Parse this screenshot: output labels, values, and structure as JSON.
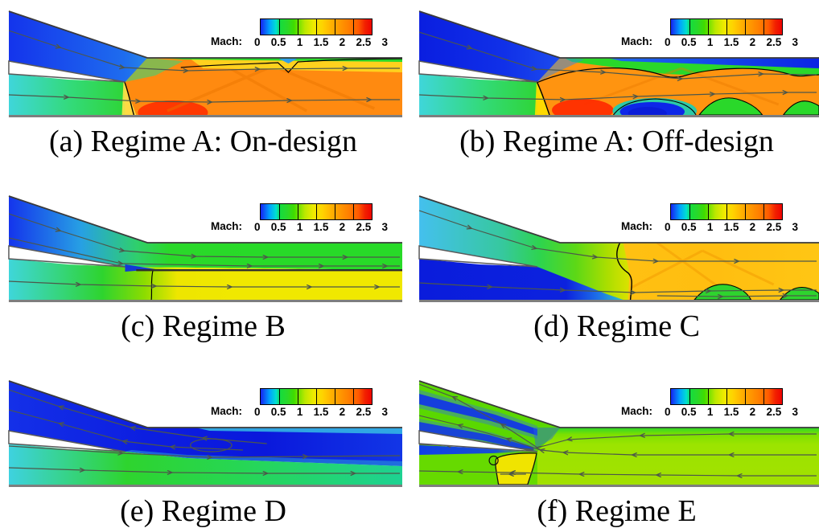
{
  "figure": {
    "kind": "CFD Mach-number contour figure",
    "rows": 3,
    "cols": 2
  },
  "colorbar": {
    "label": "Mach:",
    "ticks": [
      "0",
      "0.5",
      "1",
      "1.5",
      "2",
      "2.5",
      "3"
    ],
    "range": [
      0,
      3
    ],
    "palette": [
      "#1623f0",
      "#00c8ff",
      "#2ad82a",
      "#f0ea00",
      "#ffb000",
      "#ff7d00",
      "#ee0400"
    ]
  },
  "panels": [
    {
      "id": "a",
      "caption": "(a) Regime A: On-design"
    },
    {
      "id": "b",
      "caption": "(b) Regime A: Off-design"
    },
    {
      "id": "c",
      "caption": "(c) Regime B"
    },
    {
      "id": "d",
      "caption": "(d) Regime C"
    },
    {
      "id": "e",
      "caption": "(e) Regime D"
    },
    {
      "id": "f",
      "caption": "(f) Regime E"
    }
  ],
  "chart_data": [
    {
      "type": "heatmap",
      "panel": "a",
      "title": "(a) Regime A: On-design",
      "variable": "Mach",
      "range": [
        0,
        3
      ],
      "colorbar_ticks": [
        0,
        0.5,
        1,
        1.5,
        2,
        2.5,
        3
      ],
      "features": {
        "upper_inlet_mach": 0.4,
        "lower_inlet_mach": 0.7,
        "downstream_core_mach": 2.2,
        "downstream_top_layer_mach": 1.1,
        "shock_at_splitter_tip": true,
        "shock_diamonds": true,
        "flow_direction": "left-to-right"
      }
    },
    {
      "type": "heatmap",
      "panel": "b",
      "title": "(b) Regime A: Off-design",
      "variable": "Mach",
      "range": [
        0,
        3
      ],
      "colorbar_ticks": [
        0,
        0.5,
        1,
        1.5,
        2,
        2.5,
        3
      ],
      "features": {
        "upper_inlet_mach": 0.25,
        "lower_inlet_mach": 0.7,
        "downstream_core_mach": 2.0,
        "top_wall_subsonic_layer_mach": 0.3,
        "separation_bubble_mach": 0.15,
        "subsonic_pocket_mach": 0.8,
        "shock_train": true,
        "flow_direction": "left-to-right"
      }
    },
    {
      "type": "heatmap",
      "panel": "c",
      "title": "(c) Regime B",
      "variable": "Mach",
      "range": [
        0,
        3
      ],
      "colorbar_ticks": [
        0,
        0.5,
        1,
        1.5,
        2,
        2.5,
        3
      ],
      "features": {
        "upper_inlet_mach": 0.5,
        "lower_inlet_mach": 0.7,
        "downstream_upper_band_mach": 0.85,
        "downstream_lower_band_mach": 1.15,
        "slip_line_between_streams": true,
        "flow_direction": "left-to-right"
      }
    },
    {
      "type": "heatmap",
      "panel": "d",
      "title": "(d) Regime C",
      "variable": "Mach",
      "range": [
        0,
        3
      ],
      "colorbar_ticks": [
        0,
        0.5,
        1,
        1.5,
        2,
        2.5,
        3
      ],
      "features": {
        "upper_inlet_mach": 0.7,
        "lower_inlet_mach": 0.15,
        "downstream_core_mach": 1.5,
        "subsonic_pocket_mach": 0.8,
        "curved_shock_near_junction": true,
        "shock_diamonds": true,
        "flow_direction": "left-to-right"
      }
    },
    {
      "type": "heatmap",
      "panel": "e",
      "title": "(e) Regime D",
      "variable": "Mach",
      "range": [
        0,
        3
      ],
      "colorbar_ticks": [
        0,
        0.5,
        1,
        1.5,
        2,
        2.5,
        3
      ],
      "features": {
        "upper_duct_mach": 0.25,
        "upper_duct_flow_reversed": true,
        "lower_inlet_mach": 0.6,
        "downstream_core_mach": 0.3,
        "downstream_lower_band_mach": 0.8,
        "recirculation_bubble": true,
        "flow_direction": "mixed"
      }
    },
    {
      "type": "heatmap",
      "panel": "f",
      "title": "(f) Regime E",
      "variable": "Mach",
      "range": [
        0,
        3
      ],
      "colorbar_ticks": [
        0,
        0.5,
        1,
        1.5,
        2,
        2.5,
        3
      ],
      "features": {
        "duct_mach": 0.85,
        "entire_duct_flow_reversed": true,
        "upper_duct_jet_mach": 0.2,
        "spill_plume_mach": 1.2,
        "plume_below_splitter_tip": true,
        "flow_direction": "right-to-left"
      }
    }
  ]
}
